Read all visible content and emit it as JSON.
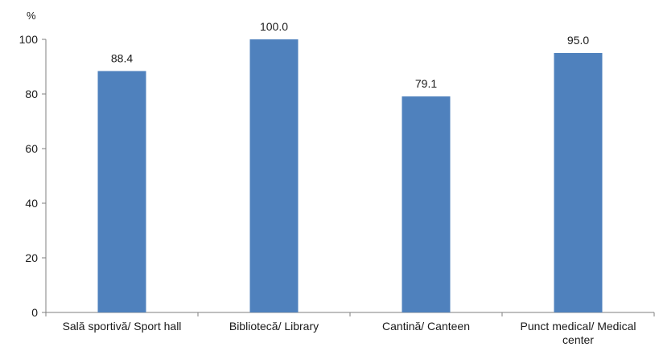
{
  "chart_data": {
    "type": "bar",
    "ylabel": "%",
    "ylim": [
      0,
      100
    ],
    "yticks": [
      0,
      20,
      40,
      60,
      80,
      100
    ],
    "ytick_labels": [
      "0",
      "20",
      "40",
      "60",
      "80",
      "100"
    ],
    "grid": false,
    "legend": "none",
    "categories": [
      [
        "Sală sportivă/ Sport hall"
      ],
      [
        "Bibliotecă/ Library"
      ],
      [
        "Cantină/ Canteen"
      ],
      [
        "Punct medical/ Medical",
        "center"
      ]
    ],
    "values": [
      88.4,
      100.0,
      79.1,
      95.0
    ],
    "value_labels": [
      "88.4",
      "100.0",
      "79.1",
      "95.0"
    ],
    "colors": {
      "bar": "#4f81bd",
      "axis": "#7f7f7f",
      "text": "#1a1a1a"
    }
  }
}
